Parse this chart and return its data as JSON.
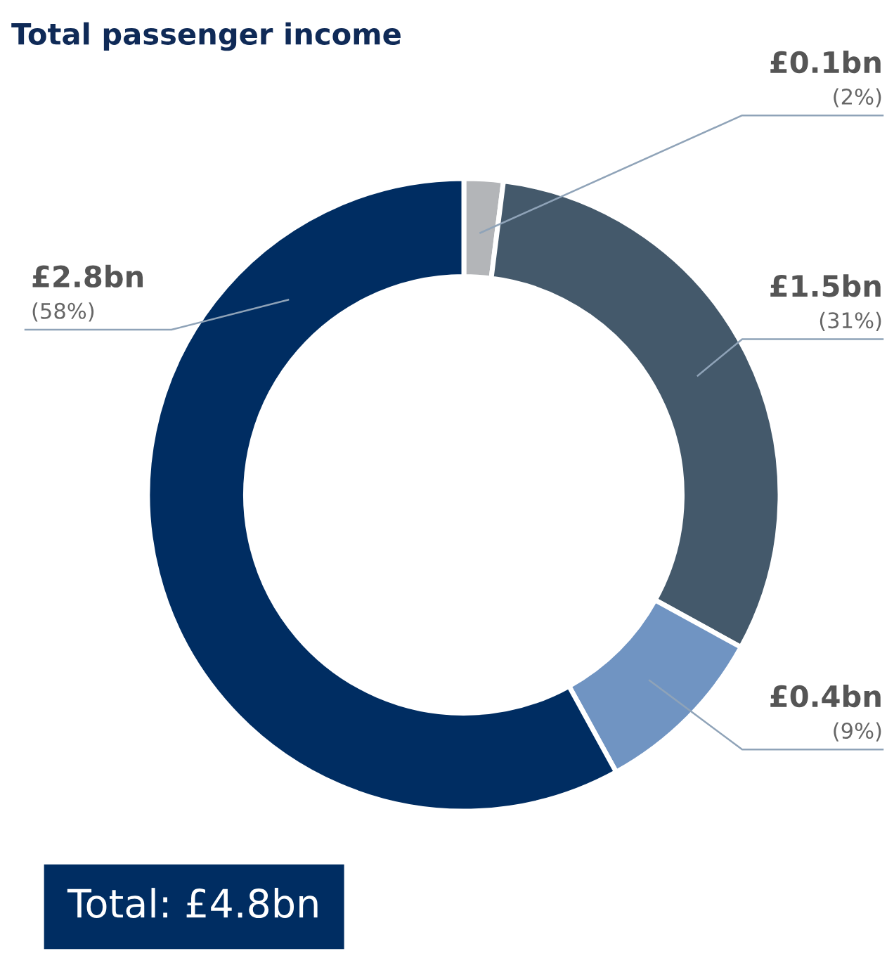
{
  "chart_data": {
    "type": "donut",
    "title": "Total passenger income",
    "categories": [
      null,
      null,
      null,
      null
    ],
    "values": [
      2,
      31,
      9,
      58
    ],
    "colors": [
      "#b3b5b8",
      "#44596b",
      "#7094c2",
      "#002d62"
    ],
    "value_labels": [
      "£0.1bn\n(2%)",
      "£1.5bn\n(31%)",
      "£0.4bn\n(9%)",
      "£2.8bn\n(58%)"
    ],
    "annotations": [
      "Total: £4.8bn"
    ]
  }
}
